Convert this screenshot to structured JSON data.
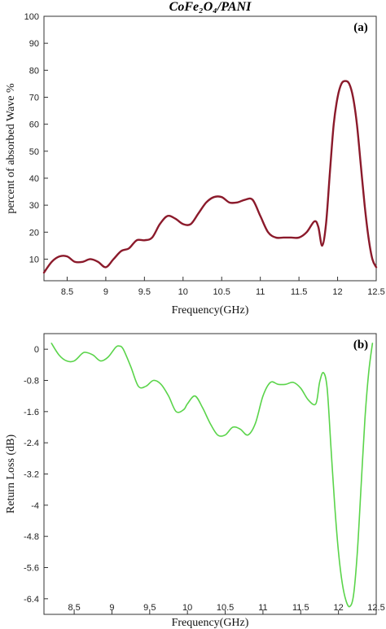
{
  "figure_title": "CoFe₂O₄/PANI",
  "chart_data": [
    {
      "type": "line",
      "panel_label": "(a)",
      "title": "CoFe₂O₄/PANI",
      "xlabel": "Frequency(GHz)",
      "ylabel": "percent of absorbed Wave %",
      "xlim": [
        8.2,
        12.5
      ],
      "ylim": [
        2,
        100
      ],
      "xticks": [
        "8.5",
        "9",
        "9.5",
        "10",
        "10.5",
        "11",
        "11.5",
        "12",
        "12.5"
      ],
      "yticks": [
        "10",
        "20",
        "30",
        "40",
        "50",
        "60",
        "70",
        "80",
        "90",
        "100"
      ],
      "grid": false,
      "line_color": "#8b1a2b",
      "series": [
        {
          "x": [
            8.2,
            8.3,
            8.4,
            8.5,
            8.6,
            8.7,
            8.8,
            8.9,
            9.0,
            9.1,
            9.2,
            9.3,
            9.4,
            9.5,
            9.6,
            9.7,
            9.8,
            9.9,
            10.0,
            10.1,
            10.2,
            10.3,
            10.4,
            10.5,
            10.6,
            10.7,
            10.8,
            10.9,
            11.0,
            11.1,
            11.2,
            11.3,
            11.4,
            11.5,
            11.6,
            11.7,
            11.75,
            11.8,
            11.85,
            11.9,
            11.95,
            12.0,
            12.05,
            12.1,
            12.15,
            12.2,
            12.25,
            12.3,
            12.35,
            12.4,
            12.45,
            12.5
          ],
          "y": [
            5,
            9,
            11,
            11,
            9,
            9,
            10,
            9,
            7,
            10,
            13,
            14,
            17,
            17,
            18,
            23,
            26,
            25,
            23,
            23,
            27,
            31,
            33,
            33,
            31,
            31,
            32,
            32,
            26,
            20,
            18,
            18,
            18,
            18,
            20,
            24,
            22,
            15,
            23,
            42,
            60,
            70,
            75,
            76,
            75,
            70,
            60,
            45,
            30,
            18,
            10,
            7
          ]
        }
      ]
    },
    {
      "type": "line",
      "panel_label": "(b)",
      "xlabel": "Frequency(GHz)",
      "ylabel": "Return Loss (dB)",
      "xlim": [
        8.1,
        12.5
      ],
      "ylim": [
        -6.8,
        0.4
      ],
      "xticks": [
        "8.5",
        "9",
        "9.5",
        "10",
        "10.5",
        "11",
        "11.5",
        "12",
        "12.5"
      ],
      "yticks": [
        "0",
        "-0.8",
        "-1.6",
        "-2.4",
        "-3.2",
        "-4",
        "-4.8",
        "-5.6",
        "-6.4"
      ],
      "grid": false,
      "line_color": "#5ad44a",
      "series": [
        {
          "x": [
            8.2,
            8.3,
            8.4,
            8.5,
            8.6,
            8.65,
            8.75,
            8.85,
            8.95,
            9.05,
            9.1,
            9.15,
            9.25,
            9.35,
            9.45,
            9.55,
            9.65,
            9.75,
            9.85,
            9.95,
            10.0,
            10.1,
            10.2,
            10.3,
            10.4,
            10.5,
            10.6,
            10.7,
            10.8,
            10.9,
            11.0,
            11.1,
            11.2,
            11.3,
            11.4,
            11.5,
            11.6,
            11.7,
            11.75,
            11.8,
            11.85,
            11.9,
            11.95,
            12.0,
            12.05,
            12.1,
            12.15,
            12.2,
            12.25,
            12.3,
            12.35,
            12.4,
            12.45
          ],
          "y": [
            0.15,
            -0.15,
            -0.3,
            -0.3,
            -0.12,
            -0.08,
            -0.15,
            -0.3,
            -0.2,
            0.05,
            0.08,
            0.0,
            -0.45,
            -0.95,
            -0.95,
            -0.8,
            -0.9,
            -1.2,
            -1.6,
            -1.55,
            -1.4,
            -1.2,
            -1.5,
            -1.9,
            -2.2,
            -2.2,
            -2.0,
            -2.05,
            -2.2,
            -1.9,
            -1.2,
            -0.85,
            -0.9,
            -0.9,
            -0.85,
            -1.0,
            -1.3,
            -1.4,
            -0.85,
            -0.6,
            -1.0,
            -2.5,
            -4.0,
            -5.2,
            -6.0,
            -6.45,
            -6.6,
            -6.3,
            -5.2,
            -3.5,
            -1.8,
            -0.6,
            0.15
          ]
        }
      ]
    }
  ]
}
